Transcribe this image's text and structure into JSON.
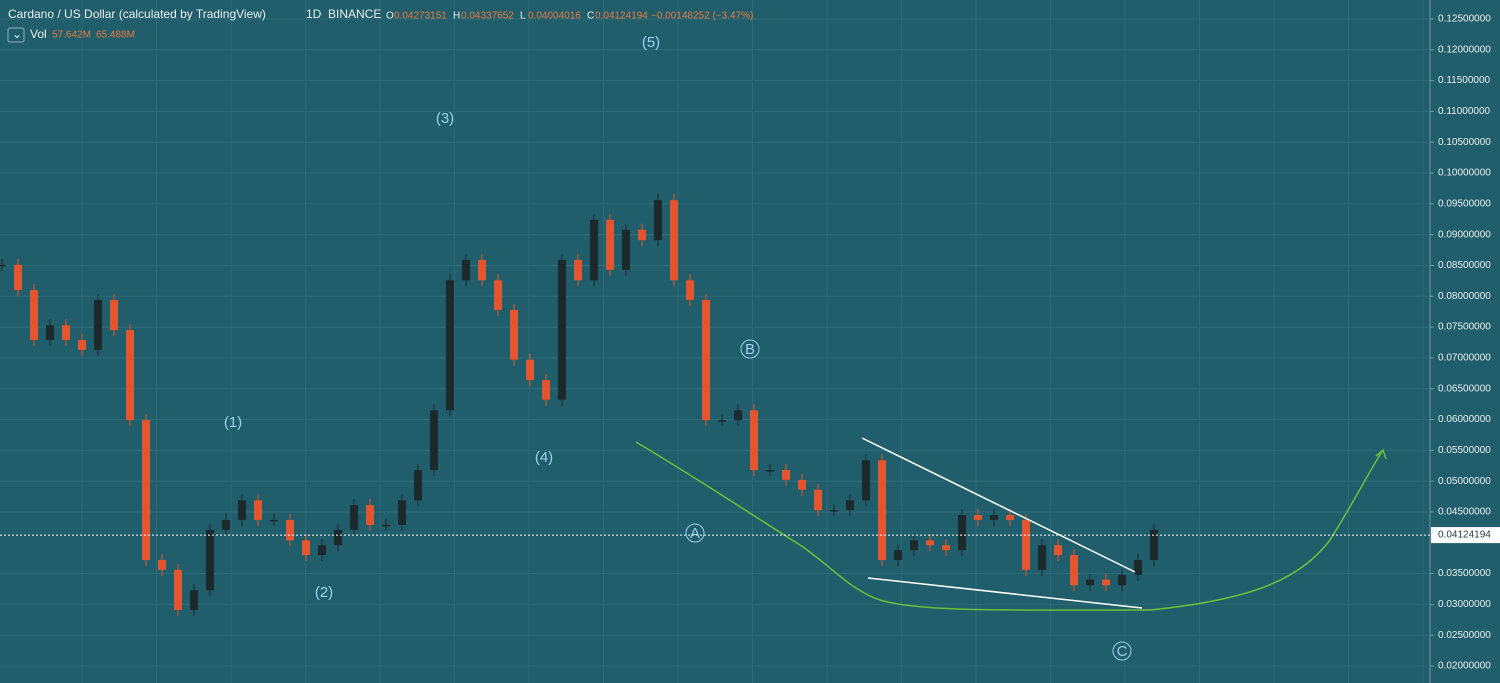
{
  "chart_data": {
    "type": "candlestick",
    "title": "Cardano / US Dollar (calculated by TradingView)",
    "interval": "1D",
    "exchange": "BINANCE",
    "ohlc_labels": [
      "O",
      "H",
      "L",
      "C"
    ],
    "ohlc_values": [
      "0.04273151",
      "0.04337652",
      "0.04004016",
      "0.04124194"
    ],
    "change": "−0.00148252 (−3.47%)",
    "volume_label": "Vol",
    "volume_values": [
      "57.642M",
      "65.488M"
    ],
    "values": [
      0.0851,
      0.081,
      0.0729,
      0.0753,
      0.0729,
      0.0713,
      0.0794,
      0.0745,
      0.0599,
      0.0372,
      0.0356,
      0.0291,
      0.0323,
      0.0421,
      0.0437,
      0.0469,
      0.0437,
      0.0437,
      0.0404,
      0.038,
      0.0396,
      0.0421,
      0.0461,
      0.0429,
      0.0429,
      0.0469,
      0.0518,
      0.0615,
      0.0826,
      0.0859,
      0.0826,
      0.0778,
      0.0697,
      0.0664,
      0.0632,
      0.0859,
      0.0826,
      0.0924,
      0.0843,
      0.0908,
      0.0891,
      0.0956,
      0.0826,
      0.0794,
      0.0599,
      0.0599,
      0.0615,
      0.0518,
      0.0518,
      0.0502,
      0.0486,
      0.0453,
      0.0453,
      0.0469,
      0.0534,
      0.0372,
      0.0388,
      0.0404,
      0.0396,
      0.0388,
      0.0445,
      0.0437,
      0.0445,
      0.0437,
      0.0356,
      0.0396,
      0.038,
      0.0331,
      0.034,
      0.0331,
      0.0348,
      0.0372,
      0.0421
    ],
    "up_color": "#1c2a2e",
    "down_color": "#e2552e",
    "last_price": 0.04124194,
    "ylim": [
      0.01724,
      0.12808
    ],
    "yticks": [
      {
        "value": 0.125,
        "label": "0.12500000"
      },
      {
        "value": 0.12,
        "label": "0.12000000"
      },
      {
        "value": 0.115,
        "label": "0.11500000"
      },
      {
        "value": 0.11,
        "label": "0.11000000"
      },
      {
        "value": 0.105,
        "label": "0.10500000"
      },
      {
        "value": 0.1,
        "label": "0.10000000"
      },
      {
        "value": 0.095,
        "label": "0.09500000"
      },
      {
        "value": 0.09,
        "label": "0.09000000"
      },
      {
        "value": 0.085,
        "label": "0.08500000"
      },
      {
        "value": 0.08,
        "label": "0.08000000"
      },
      {
        "value": 0.075,
        "label": "0.07500000"
      },
      {
        "value": 0.07,
        "label": "0.07000000"
      },
      {
        "value": 0.065,
        "label": "0.06500000"
      },
      {
        "value": 0.06,
        "label": "0.06000000"
      },
      {
        "value": 0.055,
        "label": "0.05500000"
      },
      {
        "value": 0.05,
        "label": "0.05000000"
      },
      {
        "value": 0.045,
        "label": "0.04500000"
      },
      {
        "value": 0.035,
        "label": "0.03500000"
      },
      {
        "value": 0.03,
        "label": "0.03000000"
      },
      {
        "value": 0.025,
        "label": "0.02500000"
      },
      {
        "value": 0.02,
        "label": "0.02000000"
      }
    ],
    "annotations": [
      "(1)",
      "(2)",
      "(3)",
      "(4)",
      "(5)",
      "A",
      "B",
      "C"
    ]
  }
}
